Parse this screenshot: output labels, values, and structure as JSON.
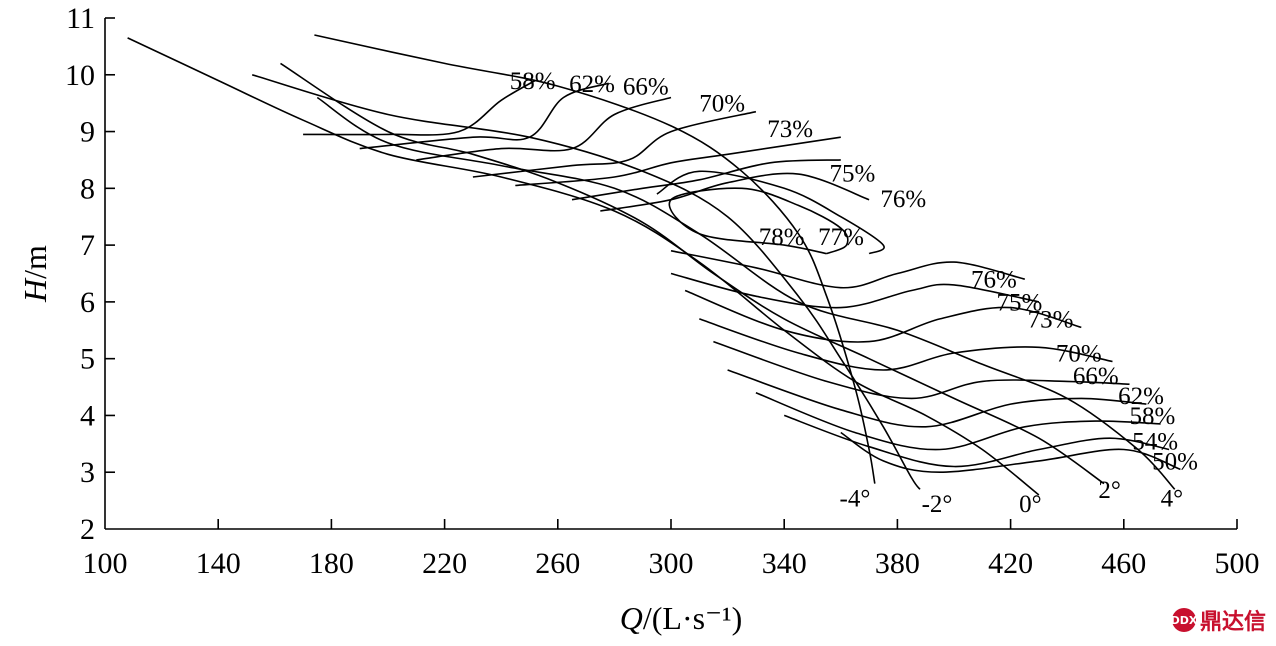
{
  "chart_data": {
    "type": "line",
    "xlabel": "Q/(L·s⁻¹)",
    "ylabel": "H/m",
    "xlim": [
      100,
      500
    ],
    "ylim": [
      2,
      11
    ],
    "xticks": [
      100,
      140,
      180,
      220,
      260,
      300,
      340,
      380,
      420,
      460,
      500
    ],
    "yticks": [
      2,
      3,
      4,
      5,
      6,
      7,
      8,
      9,
      10,
      11
    ],
    "head_curves": [
      {
        "name": "-4°",
        "points": [
          [
            174,
            10.7
          ],
          [
            220,
            10.2
          ],
          [
            260,
            9.8
          ],
          [
            300,
            9.1
          ],
          [
            325,
            8.3
          ],
          [
            345,
            7.2
          ],
          [
            355,
            6.1
          ],
          [
            365,
            4.5
          ],
          [
            370,
            3.4
          ],
          [
            372,
            2.8
          ]
        ]
      },
      {
        "name": "-2°",
        "points": [
          [
            152,
            10.0
          ],
          [
            200,
            9.3
          ],
          [
            250,
            8.9
          ],
          [
            290,
            8.3
          ],
          [
            320,
            7.5
          ],
          [
            345,
            6.1
          ],
          [
            360,
            5.0
          ],
          [
            375,
            3.8
          ],
          [
            385,
            2.9
          ],
          [
            388,
            2.7
          ]
        ]
      },
      {
        "name": "0°",
        "points": [
          [
            108,
            10.65
          ],
          [
            140,
            9.9
          ],
          [
            170,
            9.2
          ],
          [
            200,
            8.6
          ],
          [
            240,
            8.2
          ],
          [
            280,
            7.6
          ],
          [
            310,
            6.7
          ],
          [
            340,
            5.5
          ],
          [
            365,
            4.6
          ],
          [
            390,
            4.0
          ],
          [
            410,
            3.4
          ],
          [
            430,
            2.6
          ]
        ]
      },
      {
        "name": "2°",
        "points": [
          [
            162,
            10.2
          ],
          [
            200,
            9.0
          ],
          [
            230,
            8.6
          ],
          [
            260,
            8.1
          ],
          [
            290,
            7.4
          ],
          [
            315,
            6.5
          ],
          [
            340,
            5.7
          ],
          [
            370,
            5.0
          ],
          [
            400,
            4.3
          ],
          [
            430,
            3.6
          ],
          [
            453,
            2.8
          ]
        ]
      },
      {
        "name": "4°",
        "points": [
          [
            175,
            9.6
          ],
          [
            200,
            8.8
          ],
          [
            240,
            8.4
          ],
          [
            280,
            8.0
          ],
          [
            310,
            7.2
          ],
          [
            345,
            6.0
          ],
          [
            380,
            5.5
          ],
          [
            410,
            4.9
          ],
          [
            440,
            4.3
          ],
          [
            465,
            3.4
          ],
          [
            478,
            2.7
          ]
        ]
      }
    ],
    "efficiency_contours": [
      {
        "label": "58%",
        "label_pos": [
          243,
          9.75
        ],
        "points": [
          [
            170,
            8.95
          ],
          [
            200,
            8.95
          ],
          [
            225,
            9.0
          ],
          [
            240,
            9.55
          ],
          [
            252,
            9.9
          ]
        ]
      },
      {
        "label": "62%",
        "label_pos": [
          264,
          9.7
        ],
        "points": [
          [
            190,
            8.7
          ],
          [
            230,
            8.9
          ],
          [
            250,
            8.9
          ],
          [
            262,
            9.6
          ],
          [
            278,
            9.85
          ]
        ]
      },
      {
        "label": "66%",
        "label_pos": [
          283,
          9.65
        ],
        "points": [
          [
            210,
            8.5
          ],
          [
            240,
            8.7
          ],
          [
            265,
            8.7
          ],
          [
            280,
            9.3
          ],
          [
            300,
            9.6
          ]
        ]
      },
      {
        "label": "70%",
        "label_pos": [
          310,
          9.35
        ],
        "points": [
          [
            230,
            8.2
          ],
          [
            265,
            8.4
          ],
          [
            285,
            8.5
          ],
          [
            300,
            9.0
          ],
          [
            330,
            9.35
          ]
        ]
      },
      {
        "label": "73%",
        "label_pos": [
          334,
          8.9
        ],
        "points": [
          [
            245,
            8.05
          ],
          [
            280,
            8.2
          ],
          [
            300,
            8.45
          ],
          [
            320,
            8.6
          ],
          [
            360,
            8.9
          ]
        ]
      },
      {
        "label": "75%",
        "label_pos": [
          356,
          8.12
        ],
        "points": [
          [
            265,
            7.8
          ],
          [
            290,
            8.0
          ],
          [
            310,
            8.15
          ],
          [
            335,
            8.45
          ],
          [
            360,
            8.5
          ]
        ]
      },
      {
        "label": "76%",
        "label_pos": [
          374,
          7.67
        ],
        "points": [
          [
            275,
            7.6
          ],
          [
            300,
            7.8
          ],
          [
            320,
            8.1
          ],
          [
            345,
            8.25
          ],
          [
            370,
            7.8
          ]
        ]
      },
      {
        "label": "78%",
        "label_pos": [
          331,
          7.0
        ],
        "points": [
          [
            355,
            6.85
          ],
          [
            340,
            7.0
          ],
          [
            310,
            7.2
          ],
          [
            300,
            7.8
          ],
          [
            325,
            8.0
          ],
          [
            345,
            7.7
          ],
          [
            360,
            7.3
          ],
          [
            362,
            7.0
          ],
          [
            355,
            6.85
          ]
        ]
      },
      {
        "label": "77%",
        "label_pos": [
          352,
          7.0
        ],
        "points": [
          [
            295,
            7.9
          ],
          [
            310,
            8.3
          ],
          [
            340,
            8.0
          ],
          [
            360,
            7.5
          ],
          [
            375,
            7.0
          ],
          [
            370,
            6.85
          ]
        ]
      },
      {
        "label": "76%",
        "label_pos": [
          406,
          6.25
        ],
        "points": [
          [
            300,
            6.9
          ],
          [
            330,
            6.6
          ],
          [
            360,
            6.25
          ],
          [
            380,
            6.5
          ],
          [
            400,
            6.7
          ],
          [
            425,
            6.4
          ]
        ]
      },
      {
        "label": "75%",
        "label_pos": [
          415,
          5.85
        ],
        "points": [
          [
            300,
            6.5
          ],
          [
            330,
            6.1
          ],
          [
            360,
            5.9
          ],
          [
            385,
            6.2
          ],
          [
            400,
            6.3
          ],
          [
            430,
            6.0
          ]
        ]
      },
      {
        "label": "73%",
        "label_pos": [
          426,
          5.55
        ],
        "points": [
          [
            305,
            6.2
          ],
          [
            340,
            5.5
          ],
          [
            370,
            5.3
          ],
          [
            395,
            5.7
          ],
          [
            420,
            5.9
          ],
          [
            445,
            5.55
          ]
        ]
      },
      {
        "label": "70%",
        "label_pos": [
          436,
          4.95
        ],
        "points": [
          [
            310,
            5.7
          ],
          [
            345,
            5.1
          ],
          [
            375,
            4.8
          ],
          [
            400,
            5.1
          ],
          [
            430,
            5.2
          ],
          [
            456,
            4.95
          ]
        ]
      },
      {
        "label": "66%",
        "label_pos": [
          442,
          4.55
        ],
        "points": [
          [
            315,
            5.3
          ],
          [
            355,
            4.6
          ],
          [
            385,
            4.3
          ],
          [
            410,
            4.6
          ],
          [
            440,
            4.6
          ],
          [
            462,
            4.55
          ]
        ]
      },
      {
        "label": "62%",
        "label_pos": [
          458,
          4.2
        ],
        "points": [
          [
            320,
            4.8
          ],
          [
            360,
            4.1
          ],
          [
            390,
            3.8
          ],
          [
            420,
            4.2
          ],
          [
            445,
            4.3
          ],
          [
            468,
            4.2
          ]
        ]
      },
      {
        "label": "58%",
        "label_pos": [
          462,
          3.85
        ],
        "points": [
          [
            330,
            4.4
          ],
          [
            365,
            3.7
          ],
          [
            395,
            3.4
          ],
          [
            425,
            3.8
          ],
          [
            450,
            3.9
          ],
          [
            473,
            3.85
          ]
        ]
      },
      {
        "label": "54%",
        "label_pos": [
          463,
          3.4
        ],
        "points": [
          [
            340,
            4.0
          ],
          [
            370,
            3.45
          ],
          [
            400,
            3.1
          ],
          [
            430,
            3.4
          ],
          [
            455,
            3.6
          ],
          [
            476,
            3.4
          ]
        ]
      },
      {
        "label": "50%",
        "label_pos": [
          470,
          3.05
        ],
        "points": [
          [
            360,
            3.7
          ],
          [
            375,
            3.2
          ],
          [
            395,
            3.0
          ],
          [
            430,
            3.2
          ],
          [
            460,
            3.4
          ],
          [
            480,
            3.05
          ]
        ]
      }
    ],
    "annotations": [
      {
        "text": "-4°",
        "pos": [
          365,
          2.4
        ]
      },
      {
        "text": "-2°",
        "pos": [
          394,
          2.3
        ]
      },
      {
        "text": "0°",
        "pos": [
          427,
          2.3
        ]
      },
      {
        "text": "2°",
        "pos": [
          455,
          2.55
        ]
      },
      {
        "text": "4°",
        "pos": [
          477,
          2.4
        ]
      }
    ],
    "grid": false
  },
  "watermark": {
    "text": "鼎达信",
    "logo_text": "DDX"
  }
}
